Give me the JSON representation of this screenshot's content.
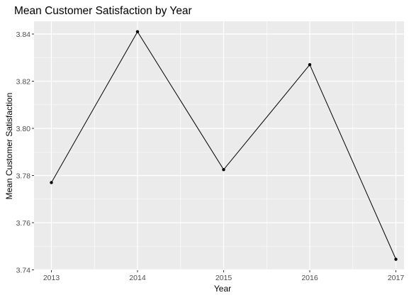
{
  "chart_data": {
    "type": "line",
    "title": "Mean Customer Satisfaction by Year",
    "xlabel": "Year",
    "ylabel": "Mean Customer Satisfaction",
    "x": [
      "2013",
      "2014",
      "2015",
      "2016",
      "2017"
    ],
    "series": [
      {
        "values": [
          3.777,
          3.841,
          3.7825,
          3.827,
          3.7445
        ]
      }
    ],
    "ylim": [
      3.74,
      3.85
    ],
    "yticks": [
      3.74,
      3.76,
      3.78,
      3.8,
      3.82,
      3.84
    ],
    "ytick_labels": [
      "3.74",
      "3.76",
      "3.78",
      "3.80",
      "3.82",
      "3.84"
    ],
    "grid": true,
    "markers": true,
    "colors": {
      "panel_background": "#ebebeb",
      "grid_major": "#ffffff",
      "line": "#000000"
    }
  }
}
